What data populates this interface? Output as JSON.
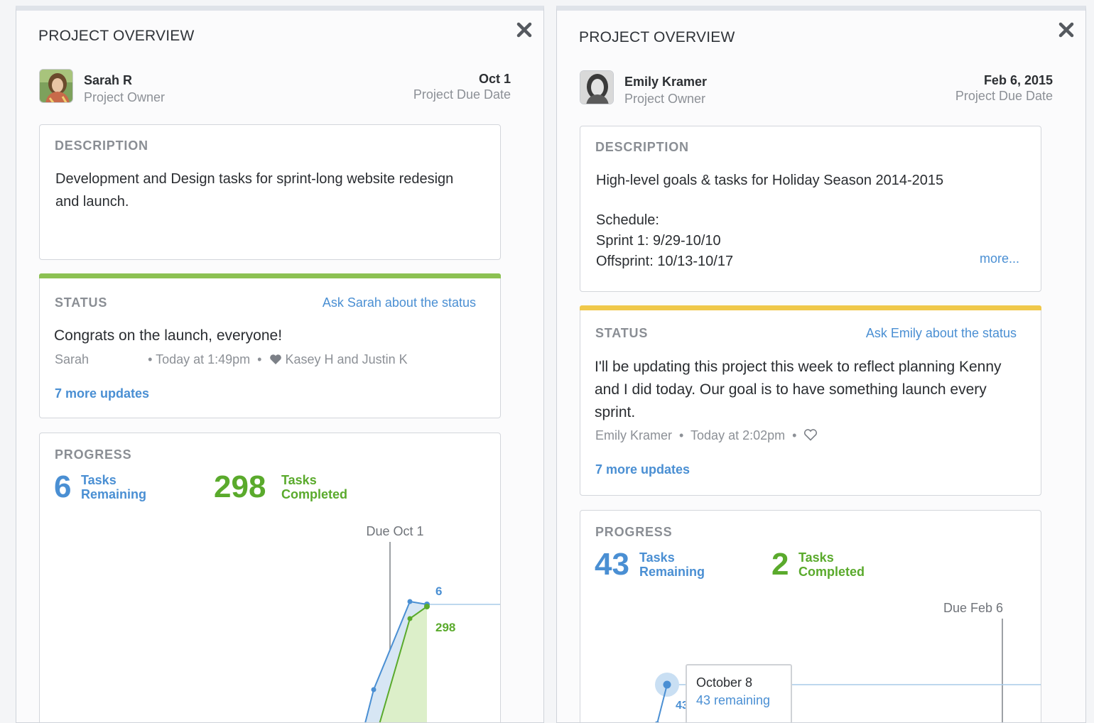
{
  "left": {
    "title": "PROJECT OVERVIEW",
    "owner": {
      "name": "Sarah R",
      "role": "Project Owner"
    },
    "due": {
      "date": "Oct 1",
      "label": "Project Due Date"
    },
    "description": {
      "label": "DESCRIPTION",
      "text": "Development and Design tasks for sprint-long website redesign and launch."
    },
    "status": {
      "label": "STATUS",
      "color": "#8cc152",
      "ask_link": "Ask Sarah about the status",
      "message": "Congrats on the launch, everyone!",
      "author": "Sarah",
      "time": "Today at 1:49pm",
      "likes": "Kasey H and Justin K",
      "more_updates": "7 more updates"
    },
    "progress": {
      "label": "PROGRESS",
      "remaining": {
        "value": "6",
        "label_line1": "Tasks",
        "label_line2": "Remaining"
      },
      "completed": {
        "value": "298",
        "label_line1": "Tasks",
        "label_line2": "Completed"
      },
      "chart_due_label": "Due Oct 1",
      "end_remaining_label": "6",
      "end_completed_label": "298"
    }
  },
  "right": {
    "title": "PROJECT OVERVIEW",
    "owner": {
      "name": "Emily Kramer",
      "role": "Project Owner"
    },
    "due": {
      "date": "Feb 6, 2015",
      "label": "Project Due Date"
    },
    "description": {
      "label": "DESCRIPTION",
      "line1": "High-level goals & tasks for Holiday Season 2014-2015",
      "line2": "Schedule:",
      "line3": "Sprint 1: 9/29-10/10",
      "line4": "Offsprint: 10/13-10/17",
      "more": "more..."
    },
    "status": {
      "label": "STATUS",
      "color": "#f0c84a",
      "ask_link": "Ask Emily about the status",
      "message": "I'll be updating this project this week to reflect planning Kenny and I did today. Our goal is to have something launch every sprint.",
      "author": "Emily Kramer",
      "time": "Today at 2:02pm",
      "more_updates": "7 more updates"
    },
    "progress": {
      "label": "PROGRESS",
      "remaining": {
        "value": "43",
        "label_line1": "Tasks",
        "label_line2": "Remaining"
      },
      "completed": {
        "value": "2",
        "label_line1": "Tasks",
        "label_line2": "Completed"
      },
      "chart_due_label": "Due Feb 6",
      "tooltip": {
        "date": "October 8",
        "remaining": "43 remaining"
      }
    }
  },
  "colors": {
    "link": "#4a8fd3",
    "remaining": "#4a8fd3",
    "completed": "#5aaa2c"
  },
  "icons": [
    "close-icon",
    "heart-icon",
    "heart-outline-icon",
    "avatar"
  ]
}
